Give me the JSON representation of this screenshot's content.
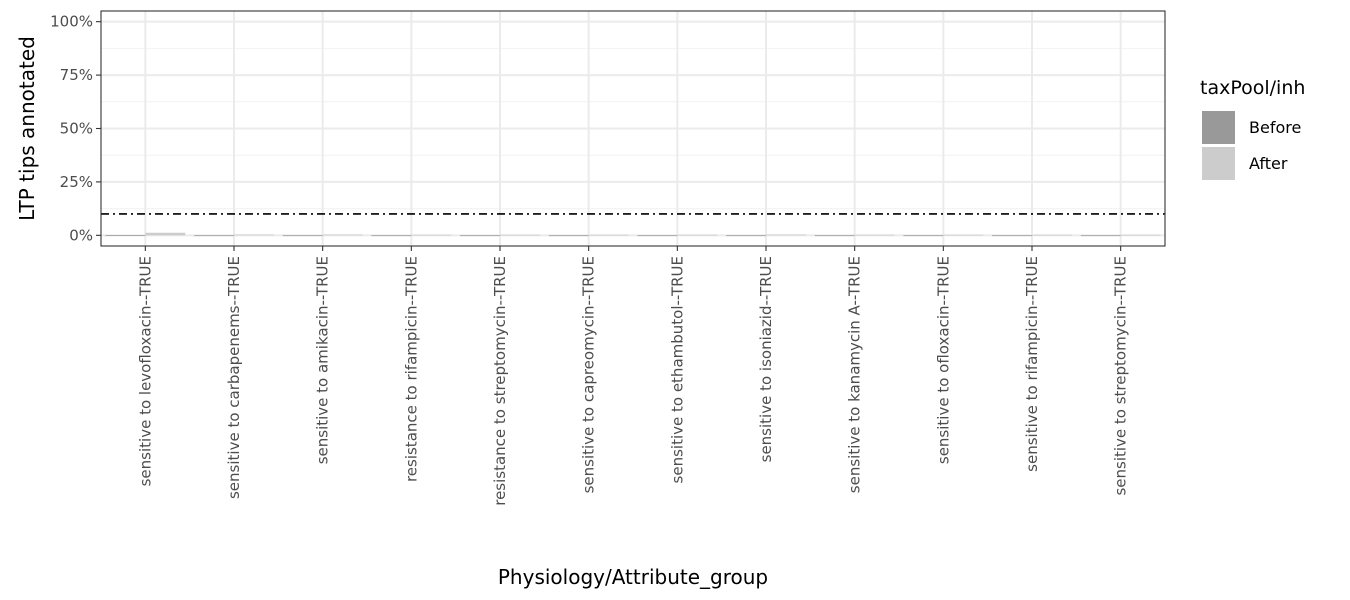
{
  "chart_data": {
    "type": "bar",
    "xlabel": "Physiology/Attribute_group",
    "ylabel": "LTP tips annotated",
    "ylim": [
      -0.05,
      1.05
    ],
    "y_ticks": [
      0,
      0.25,
      0.5,
      0.75,
      1.0
    ],
    "y_tick_labels": [
      "0%",
      "25%",
      "50%",
      "75%",
      "100%"
    ],
    "reference_line": {
      "y": 0.1,
      "style": "dot-dash"
    },
    "grid": true,
    "categories": [
      "sensitive to levofloxacin--TRUE",
      "sensitive to carbapenems--TRUE",
      "sensitive to amikacin--TRUE",
      "resistance to rifampicin--TRUE",
      "resistance to streptomycin--TRUE",
      "sensitive to capreomycin--TRUE",
      "sensitive to ethambutol--TRUE",
      "sensitive to isoniazid--TRUE",
      "sensitive to kanamycin A--TRUE",
      "sensitive to ofloxacin--TRUE",
      "sensitive to rifampicin--TRUE",
      "sensitive to streptomycin--TRUE"
    ],
    "series": [
      {
        "name": "Before",
        "color": "#999999",
        "values": [
          0.0005,
          0.0002,
          0.0002,
          0.0002,
          0.0002,
          0.0002,
          0.0002,
          0.0002,
          0.0002,
          0.0002,
          0.0002,
          0.0002
        ]
      },
      {
        "name": "After",
        "color": "#cccccc",
        "values": [
          0.012,
          0.004,
          0.004,
          0.003,
          0.003,
          0.003,
          0.003,
          0.004,
          0.003,
          0.003,
          0.003,
          0.003
        ]
      }
    ],
    "legend": {
      "title": "taxPool/inh",
      "position": "right"
    }
  }
}
